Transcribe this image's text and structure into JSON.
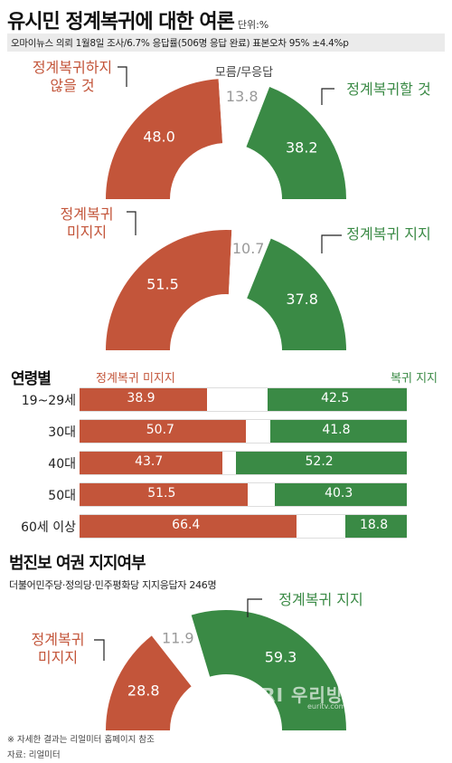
{
  "header": {
    "title": "유시민 정계복귀에 대한 여론",
    "unit": "단위:%",
    "subtitle": "오마이뉴스 의뢰 1월8일 조사/6.7% 응답률(506명 응답 완료) 표본오차 95% ±4.4%p"
  },
  "colors": {
    "red": "#c3553a",
    "green": "#3a8a45",
    "gray": "#9a9a9a"
  },
  "chart_data": [
    {
      "type": "gauge",
      "id": "gauge1",
      "slices": [
        {
          "label": "정계복귀하지\n않을 것",
          "value": 48.0,
          "display": "48.0",
          "color": "#c3553a"
        },
        {
          "label": "모름/무응답",
          "value": 13.8,
          "display": "13.8",
          "color": "#ffffff"
        },
        {
          "label": "정계복귀할 것",
          "value": 38.2,
          "display": "38.2",
          "color": "#3a8a45"
        }
      ]
    },
    {
      "type": "gauge",
      "id": "gauge2",
      "slices": [
        {
          "label": "정계복귀\n미지지",
          "value": 51.5,
          "display": "51.5",
          "color": "#c3553a"
        },
        {
          "label": "",
          "value": 10.7,
          "display": "10.7",
          "color": "#ffffff"
        },
        {
          "label": "정계복귀 지지",
          "value": 37.8,
          "display": "37.8",
          "color": "#3a8a45"
        }
      ]
    },
    {
      "type": "bar",
      "id": "age",
      "title": "연령별",
      "categories": [
        "19~29세",
        "30대",
        "40대",
        "50대",
        "60세 이상"
      ],
      "series": [
        {
          "name": "정계복귀 미지지",
          "values": [
            38.9,
            50.7,
            43.7,
            51.5,
            66.4
          ]
        },
        {
          "name": "복귀 지지",
          "values": [
            42.5,
            41.8,
            52.2,
            40.3,
            18.8
          ]
        }
      ]
    },
    {
      "type": "gauge",
      "id": "gauge3",
      "title": "범진보 여권 지지여부",
      "subtitle": "더불어민주당·정의당·민주평화당 지지응답자 246명",
      "slices": [
        {
          "label": "정계복귀\n미지지",
          "value": 28.8,
          "display": "28.8",
          "color": "#c3553a"
        },
        {
          "label": "",
          "value": 11.9,
          "display": "11.9",
          "color": "#ffffff"
        },
        {
          "label": "정계복귀 지지",
          "value": 59.3,
          "display": "59.3",
          "color": "#3a8a45"
        }
      ]
    }
  ],
  "footer": {
    "note": "※ 자세한 결과는 리얼미터 홈페이지 참조",
    "source": "자료: 리얼미터"
  },
  "watermark": {
    "text": "URI 우리방송뉴스",
    "sub": "euritv.com"
  }
}
